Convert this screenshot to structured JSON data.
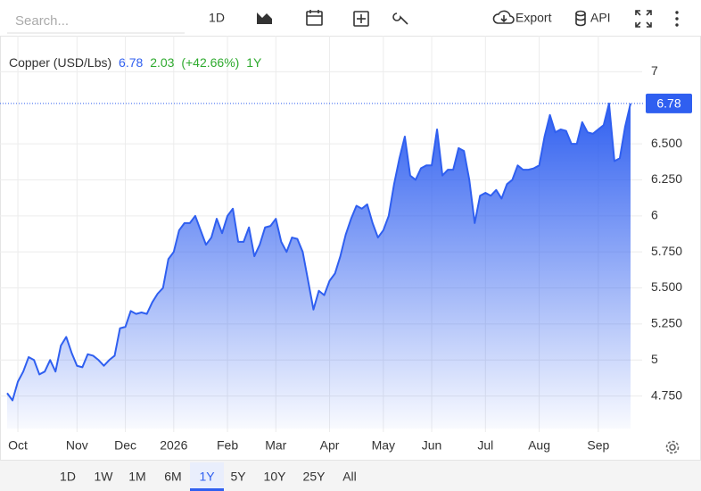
{
  "toolbar": {
    "search_placeholder": "Search...",
    "interval": "1D",
    "export": "Export",
    "api": "API"
  },
  "range_buttons": [
    "1D",
    "1W",
    "1M",
    "6M",
    "1Y",
    "5Y",
    "10Y",
    "25Y",
    "All"
  ],
  "active_range_index": 4,
  "chart_data": {
    "type": "area",
    "legend": {
      "name": "Copper (USD/Lbs)",
      "price": 6.78,
      "change": 2.03,
      "change_percent": "(+42.66%)",
      "period": "1Y"
    },
    "categories": [
      null,
      null,
      "Oct",
      null,
      null,
      null,
      null,
      null,
      null,
      null,
      null,
      null,
      null,
      "Nov",
      null,
      null,
      null,
      null,
      null,
      null,
      null,
      null,
      "Dec",
      null,
      null,
      null,
      null,
      null,
      null,
      null,
      null,
      "2026",
      null,
      null,
      null,
      null,
      null,
      null,
      null,
      null,
      null,
      "Feb",
      null,
      null,
      null,
      null,
      null,
      null,
      null,
      null,
      "Mar",
      null,
      null,
      null,
      null,
      null,
      null,
      null,
      null,
      null,
      "Apr",
      null,
      null,
      null,
      null,
      null,
      null,
      null,
      null,
      null,
      "May",
      null,
      null,
      null,
      null,
      null,
      null,
      null,
      null,
      "Jun",
      null,
      null,
      null,
      null,
      null,
      null,
      null,
      null,
      null,
      "Jul",
      null,
      null,
      null,
      null,
      null,
      null,
      null,
      null,
      null,
      "Aug",
      null,
      null,
      null,
      null,
      null,
      null,
      null,
      null,
      null,
      null,
      "Sep",
      null,
      null,
      null,
      null,
      null,
      null
    ],
    "series": [
      {
        "name": "Copper (USD/Lbs)",
        "color": "#2f5ff0",
        "values": [
          4.77,
          4.72,
          4.85,
          4.92,
          5.02,
          5.0,
          4.9,
          4.92,
          5.0,
          4.92,
          5.1,
          5.16,
          5.05,
          4.96,
          4.95,
          5.04,
          5.03,
          5.0,
          4.96,
          5.0,
          5.03,
          5.22,
          5.23,
          5.34,
          5.32,
          5.33,
          5.32,
          5.4,
          5.46,
          5.5,
          5.7,
          5.75,
          5.9,
          5.95,
          5.95,
          6.0,
          5.9,
          5.8,
          5.85,
          5.98,
          5.88,
          6.0,
          6.05,
          5.82,
          5.82,
          5.92,
          5.72,
          5.8,
          5.92,
          5.93,
          5.98,
          5.82,
          5.75,
          5.85,
          5.84,
          5.75,
          5.55,
          5.35,
          5.48,
          5.45,
          5.55,
          5.6,
          5.72,
          5.87,
          5.98,
          6.07,
          6.05,
          6.08,
          5.95,
          5.85,
          5.9,
          6.0,
          6.22,
          6.4,
          6.55,
          6.28,
          6.25,
          6.33,
          6.35,
          6.35,
          6.6,
          6.28,
          6.32,
          6.32,
          6.47,
          6.45,
          6.25,
          5.95,
          6.14,
          6.16,
          6.14,
          6.18,
          6.12,
          6.22,
          6.25,
          6.35,
          6.32,
          6.32,
          6.33,
          6.35,
          6.55,
          6.7,
          6.58,
          6.6,
          6.59,
          6.5,
          6.5,
          6.65,
          6.58,
          6.57,
          6.6,
          6.63,
          6.78,
          6.38,
          6.4,
          6.62,
          6.78
        ]
      }
    ],
    "ylim": [
      4.5,
      7.25
    ],
    "yticks": [
      {
        "value": 4.75,
        "label": "4.750"
      },
      5,
      {
        "value": 5.25,
        "label": "5.250"
      },
      {
        "value": 5.5,
        "label": "5.500"
      },
      {
        "value": 5.75,
        "label": "5.750"
      },
      6,
      {
        "value": 6.25,
        "label": "6.250"
      },
      {
        "value": 6.5,
        "label": "6.500"
      },
      7
    ],
    "grid": true,
    "last_price_line": true
  }
}
